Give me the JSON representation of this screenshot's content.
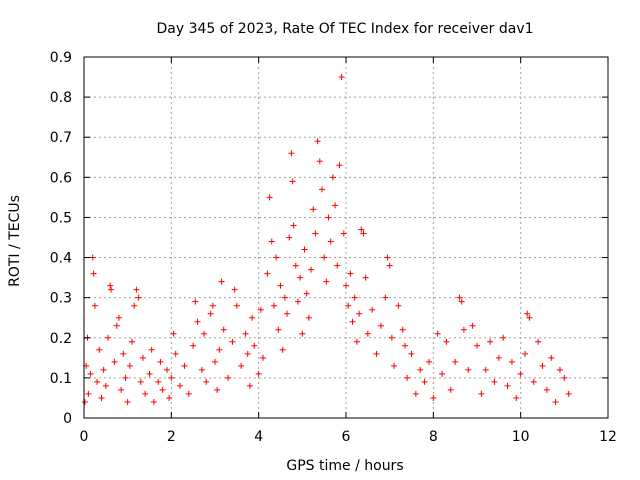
{
  "chart_data": {
    "type": "scatter",
    "title": "Day 345 of 2023, Rate Of TEC Index for receiver dav1",
    "xlabel": "GPS time / hours",
    "ylabel": "ROTI / TECUs",
    "xlim": [
      0,
      12
    ],
    "ylim": [
      0,
      0.9
    ],
    "x_ticks": [
      0,
      2,
      4,
      6,
      8,
      10,
      12
    ],
    "y_ticks": [
      0,
      0.1,
      0.2,
      0.3,
      0.4,
      0.5,
      0.6,
      0.7,
      0.8,
      0.9
    ],
    "x_tick_labels": [
      "0",
      "2",
      "4",
      "6",
      "8",
      "10",
      "12"
    ],
    "y_tick_labels": [
      "0",
      "0.1",
      "0.2",
      "0.3",
      "0.4",
      "0.5",
      "0.6",
      "0.7",
      "0.8",
      "0.9"
    ],
    "grid": true,
    "marker": "plus",
    "color": "#ff0000",
    "series": [
      {
        "points": [
          [
            0.02,
            0.04
          ],
          [
            0.05,
            0.13
          ],
          [
            0.08,
            0.2
          ],
          [
            0.1,
            0.06
          ],
          [
            0.15,
            0.11
          ],
          [
            0.2,
            0.4
          ],
          [
            0.22,
            0.36
          ],
          [
            0.25,
            0.28
          ],
          [
            0.3,
            0.09
          ],
          [
            0.35,
            0.17
          ],
          [
            0.4,
            0.05
          ],
          [
            0.45,
            0.12
          ],
          [
            0.5,
            0.08
          ],
          [
            0.55,
            0.2
          ],
          [
            0.6,
            0.33
          ],
          [
            0.62,
            0.32
          ],
          [
            0.7,
            0.14
          ],
          [
            0.75,
            0.23
          ],
          [
            0.8,
            0.25
          ],
          [
            0.85,
            0.07
          ],
          [
            0.9,
            0.16
          ],
          [
            0.95,
            0.1
          ],
          [
            1.0,
            0.04
          ],
          [
            1.05,
            0.13
          ],
          [
            1.1,
            0.19
          ],
          [
            1.15,
            0.28
          ],
          [
            1.2,
            0.32
          ],
          [
            1.25,
            0.3
          ],
          [
            1.3,
            0.09
          ],
          [
            1.35,
            0.15
          ],
          [
            1.4,
            0.06
          ],
          [
            1.5,
            0.11
          ],
          [
            1.55,
            0.17
          ],
          [
            1.6,
            0.04
          ],
          [
            1.7,
            0.09
          ],
          [
            1.75,
            0.14
          ],
          [
            1.8,
            0.07
          ],
          [
            1.9,
            0.12
          ],
          [
            1.95,
            0.05
          ],
          [
            2.0,
            0.1
          ],
          [
            2.05,
            0.21
          ],
          [
            2.1,
            0.16
          ],
          [
            2.2,
            0.08
          ],
          [
            2.3,
            0.13
          ],
          [
            2.4,
            0.06
          ],
          [
            2.5,
            0.18
          ],
          [
            2.55,
            0.29
          ],
          [
            2.6,
            0.24
          ],
          [
            2.7,
            0.12
          ],
          [
            2.75,
            0.21
          ],
          [
            2.8,
            0.09
          ],
          [
            2.9,
            0.26
          ],
          [
            2.95,
            0.28
          ],
          [
            3.0,
            0.14
          ],
          [
            3.05,
            0.07
          ],
          [
            3.1,
            0.17
          ],
          [
            3.15,
            0.34
          ],
          [
            3.2,
            0.22
          ],
          [
            3.3,
            0.1
          ],
          [
            3.4,
            0.19
          ],
          [
            3.45,
            0.32
          ],
          [
            3.5,
            0.28
          ],
          [
            3.6,
            0.13
          ],
          [
            3.7,
            0.21
          ],
          [
            3.75,
            0.16
          ],
          [
            3.8,
            0.08
          ],
          [
            3.85,
            0.25
          ],
          [
            3.9,
            0.18
          ],
          [
            4.0,
            0.11
          ],
          [
            4.05,
            0.27
          ],
          [
            4.1,
            0.15
          ],
          [
            4.2,
            0.36
          ],
          [
            4.25,
            0.55
          ],
          [
            4.3,
            0.44
          ],
          [
            4.35,
            0.28
          ],
          [
            4.4,
            0.4
          ],
          [
            4.45,
            0.22
          ],
          [
            4.5,
            0.33
          ],
          [
            4.55,
            0.17
          ],
          [
            4.6,
            0.3
          ],
          [
            4.65,
            0.26
          ],
          [
            4.7,
            0.45
          ],
          [
            4.75,
            0.66
          ],
          [
            4.78,
            0.59
          ],
          [
            4.8,
            0.48
          ],
          [
            4.85,
            0.38
          ],
          [
            4.9,
            0.29
          ],
          [
            4.95,
            0.35
          ],
          [
            5.0,
            0.21
          ],
          [
            5.05,
            0.42
          ],
          [
            5.1,
            0.31
          ],
          [
            5.15,
            0.25
          ],
          [
            5.2,
            0.37
          ],
          [
            5.25,
            0.52
          ],
          [
            5.3,
            0.46
          ],
          [
            5.35,
            0.69
          ],
          [
            5.4,
            0.64
          ],
          [
            5.45,
            0.57
          ],
          [
            5.5,
            0.4
          ],
          [
            5.55,
            0.34
          ],
          [
            5.6,
            0.5
          ],
          [
            5.65,
            0.44
          ],
          [
            5.7,
            0.6
          ],
          [
            5.75,
            0.53
          ],
          [
            5.8,
            0.38
          ],
          [
            5.85,
            0.63
          ],
          [
            5.9,
            0.85
          ],
          [
            5.95,
            0.46
          ],
          [
            6.0,
            0.33
          ],
          [
            6.05,
            0.28
          ],
          [
            6.1,
            0.36
          ],
          [
            6.15,
            0.24
          ],
          [
            6.2,
            0.3
          ],
          [
            6.25,
            0.19
          ],
          [
            6.3,
            0.26
          ],
          [
            6.35,
            0.47
          ],
          [
            6.4,
            0.46
          ],
          [
            6.45,
            0.35
          ],
          [
            6.5,
            0.21
          ],
          [
            6.6,
            0.27
          ],
          [
            6.7,
            0.16
          ],
          [
            6.8,
            0.23
          ],
          [
            6.9,
            0.3
          ],
          [
            6.95,
            0.4
          ],
          [
            7.0,
            0.38
          ],
          [
            7.05,
            0.2
          ],
          [
            7.1,
            0.13
          ],
          [
            7.2,
            0.28
          ],
          [
            7.3,
            0.22
          ],
          [
            7.35,
            0.18
          ],
          [
            7.4,
            0.1
          ],
          [
            7.5,
            0.16
          ],
          [
            7.6,
            0.06
          ],
          [
            7.7,
            0.12
          ],
          [
            7.8,
            0.09
          ],
          [
            7.9,
            0.14
          ],
          [
            8.0,
            0.05
          ],
          [
            8.1,
            0.21
          ],
          [
            8.2,
            0.11
          ],
          [
            8.3,
            0.19
          ],
          [
            8.4,
            0.07
          ],
          [
            8.5,
            0.14
          ],
          [
            8.6,
            0.3
          ],
          [
            8.65,
            0.29
          ],
          [
            8.7,
            0.22
          ],
          [
            8.8,
            0.12
          ],
          [
            8.9,
            0.23
          ],
          [
            9.0,
            0.18
          ],
          [
            9.1,
            0.06
          ],
          [
            9.2,
            0.12
          ],
          [
            9.3,
            0.19
          ],
          [
            9.4,
            0.09
          ],
          [
            9.5,
            0.15
          ],
          [
            9.6,
            0.2
          ],
          [
            9.7,
            0.08
          ],
          [
            9.8,
            0.14
          ],
          [
            9.9,
            0.05
          ],
          [
            10.0,
            0.11
          ],
          [
            10.1,
            0.16
          ],
          [
            10.15,
            0.26
          ],
          [
            10.2,
            0.25
          ],
          [
            10.3,
            0.09
          ],
          [
            10.4,
            0.19
          ],
          [
            10.5,
            0.13
          ],
          [
            10.6,
            0.07
          ],
          [
            10.7,
            0.15
          ],
          [
            10.8,
            0.04
          ],
          [
            10.9,
            0.12
          ],
          [
            11.0,
            0.1
          ],
          [
            11.1,
            0.06
          ]
        ]
      }
    ]
  }
}
